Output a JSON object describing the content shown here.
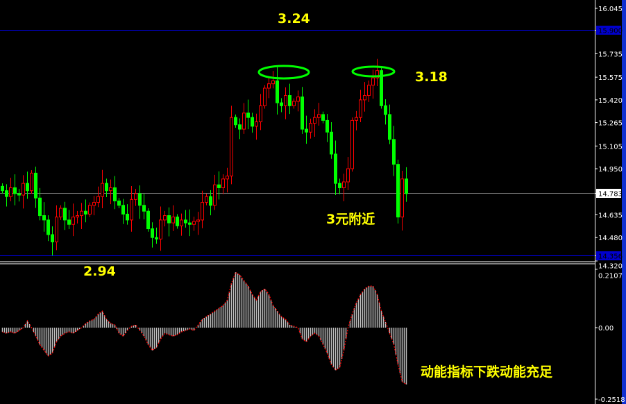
{
  "chart_data": [
    {
      "type": "candlestick",
      "panel": "price",
      "y_ticks": [
        "16.045",
        "15.735",
        "15.575",
        "15.420",
        "15.265",
        "15.105",
        "14.950",
        "14.635",
        "14.480",
        "14.320"
      ],
      "ylim": [
        14.3,
        16.1
      ],
      "hlines": [
        {
          "label": "15.900",
          "value": 15.9,
          "color": "#0000ff"
        },
        {
          "label": "14.783",
          "value": 14.783,
          "color": "#808080"
        },
        {
          "label": "14.356",
          "value": 14.356,
          "color": "#0000ff"
        }
      ],
      "close": [
        14.8,
        14.76,
        14.82,
        14.78,
        14.77,
        14.85,
        14.8,
        14.92,
        14.75,
        14.63,
        14.6,
        14.5,
        14.45,
        14.62,
        14.68,
        14.6,
        14.57,
        14.62,
        14.63,
        14.66,
        14.64,
        14.7,
        14.72,
        14.76,
        14.85,
        14.8,
        14.82,
        14.73,
        14.7,
        14.64,
        14.6,
        14.74,
        14.78,
        14.7,
        14.66,
        14.54,
        14.48,
        14.47,
        14.6,
        14.63,
        14.58,
        14.62,
        14.56,
        14.6,
        14.58,
        14.57,
        14.59,
        14.6,
        14.72,
        14.76,
        14.7,
        14.84,
        14.82,
        14.88,
        14.9,
        15.3,
        15.25,
        15.22,
        15.33,
        15.3,
        15.24,
        15.27,
        15.38,
        15.5,
        15.53,
        15.55,
        15.4,
        15.38,
        15.45,
        15.38,
        15.41,
        15.44,
        15.22,
        15.2,
        15.26,
        15.3,
        15.32,
        15.28,
        15.2,
        15.05,
        14.85,
        14.82,
        14.86,
        14.95,
        15.28,
        15.3,
        15.42,
        15.45,
        15.52,
        15.57,
        15.62,
        15.38,
        15.32,
        15.15,
        14.98,
        14.62,
        14.88,
        14.78
      ],
      "up_color": "#ff0000",
      "down_color": "#00ff00",
      "annotations": {
        "top": "3.24",
        "right_high": "3.18",
        "support": "3元附近",
        "low": "2.94"
      },
      "highlight_color": "#00ff00"
    },
    {
      "type": "bar",
      "panel": "momentum",
      "y_ticks": [
        "0.2107",
        "0.00",
        "-0.2518"
      ],
      "ylim": [
        -0.2518,
        0.2107
      ],
      "values": [
        -0.015,
        -0.02,
        -0.015,
        -0.02,
        -0.01,
        0.0,
        0.025,
        0.0,
        -0.03,
        -0.06,
        -0.08,
        -0.1,
        -0.09,
        -0.05,
        -0.03,
        -0.02,
        -0.015,
        -0.02,
        -0.01,
        0.0,
        0.015,
        0.025,
        0.03,
        0.05,
        0.06,
        0.03,
        0.015,
        0.01,
        -0.02,
        -0.03,
        -0.01,
        0.005,
        0.01,
        -0.01,
        -0.03,
        -0.06,
        -0.08,
        -0.07,
        -0.04,
        -0.02,
        -0.025,
        -0.03,
        -0.025,
        -0.015,
        -0.01,
        -0.005,
        -0.01,
        0.01,
        0.03,
        0.04,
        0.05,
        0.06,
        0.07,
        0.08,
        0.1,
        0.16,
        0.2,
        0.19,
        0.17,
        0.15,
        0.12,
        0.1,
        0.13,
        0.14,
        0.12,
        0.08,
        0.06,
        0.04,
        0.03,
        0.01,
        0.005,
        0.0,
        -0.04,
        -0.05,
        -0.03,
        -0.02,
        -0.03,
        -0.06,
        -0.09,
        -0.13,
        -0.15,
        -0.14,
        -0.08,
        0.0,
        0.05,
        0.09,
        0.12,
        0.14,
        0.15,
        0.15,
        0.12,
        0.06,
        0.02,
        -0.02,
        -0.06,
        -0.13,
        -0.19,
        -0.2
      ],
      "bar_color": "#c0c0c0",
      "signal_color": "#ff0000",
      "annotation": "动能指标下跌动能充足"
    }
  ]
}
